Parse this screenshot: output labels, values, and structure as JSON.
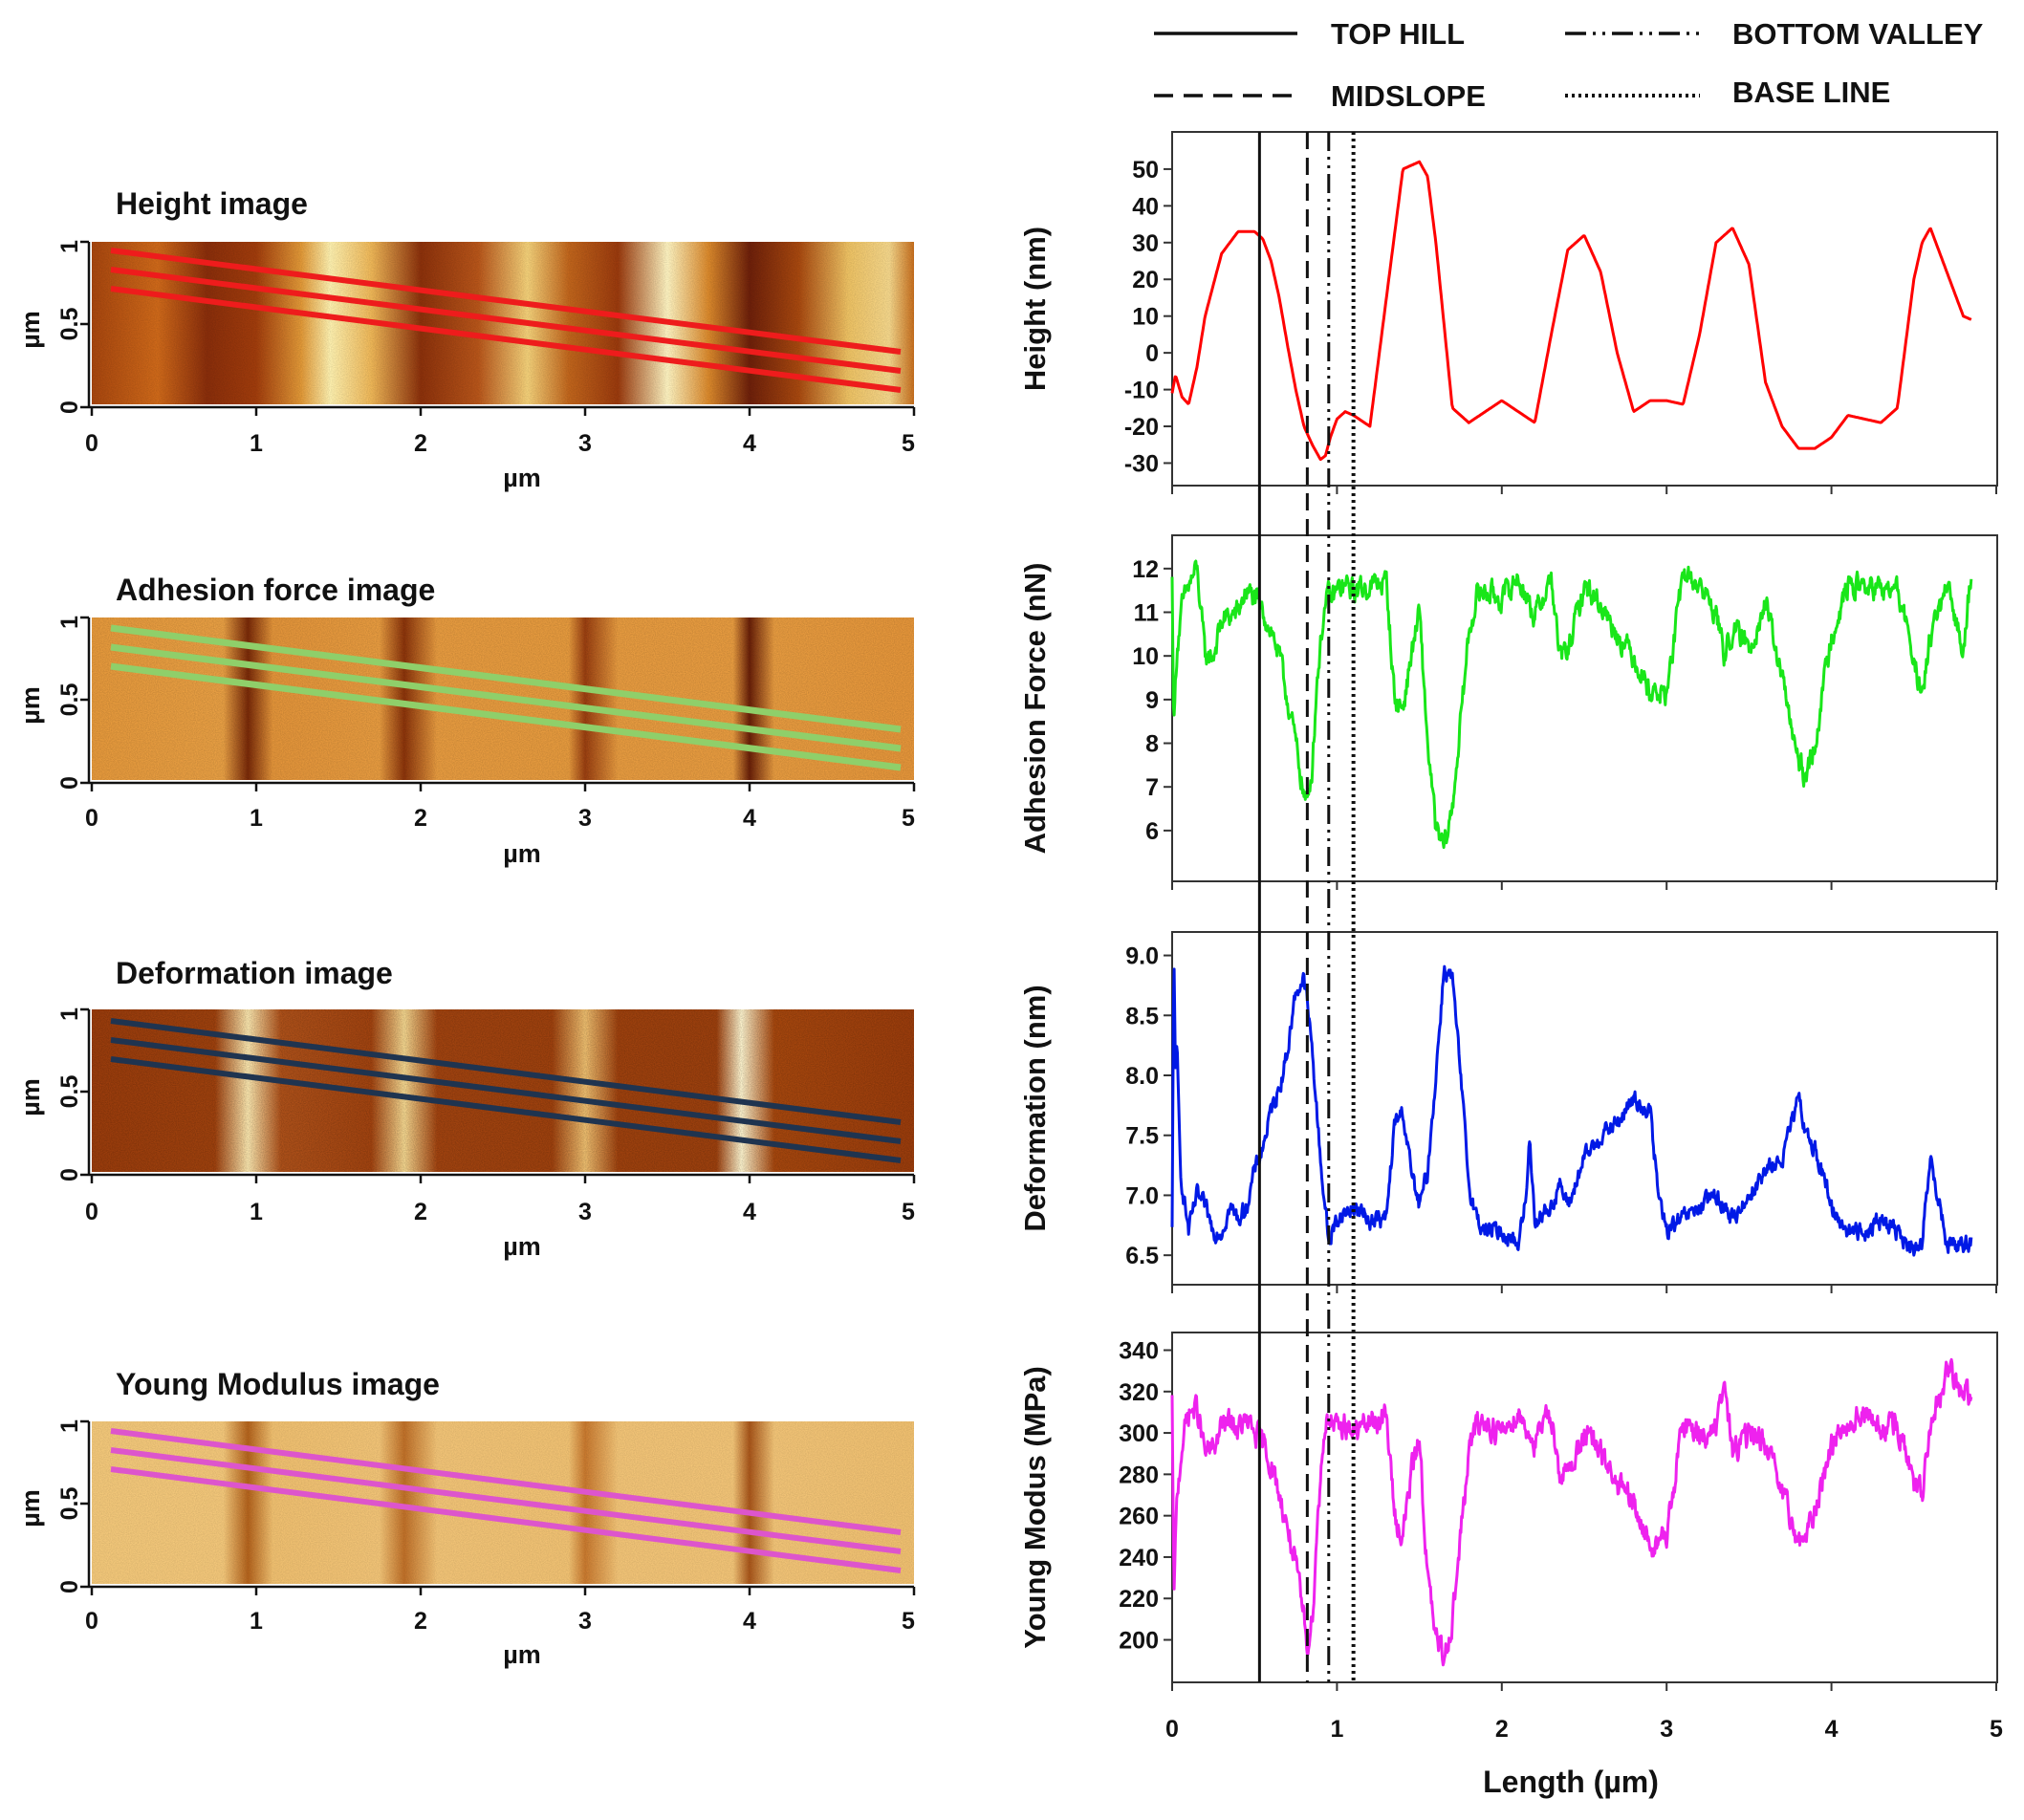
{
  "legend": {
    "top_hill": "TOP HILL",
    "bottom_valley": "BOTTOM VALLEY",
    "midslope": "MIDSLOPE",
    "base_line": "BASE LINE"
  },
  "afm_images": [
    {
      "title": "Height image",
      "x_unit": "µm",
      "y_unit": "µm",
      "line_color": "#ee1c1c",
      "colormap": "height"
    },
    {
      "title": "Adhesion force image",
      "x_unit": "µm",
      "y_unit": "µm",
      "line_color": "#8fcf6a",
      "colormap": "adhesion"
    },
    {
      "title": "Deformation image",
      "x_unit": "µm",
      "y_unit": "µm",
      "line_color": "#1f3450",
      "colormap": "deformation"
    },
    {
      "title": "Young Modulus image",
      "x_unit": "µm",
      "y_unit": "µm",
      "line_color": "#dd55cc",
      "colormap": "modulus"
    }
  ],
  "image_axis": {
    "x_ticks": [
      "0",
      "1",
      "2",
      "3",
      "4",
      "5"
    ],
    "y_ticks": [
      "0",
      "0.5",
      "1"
    ]
  },
  "chart_data": {
    "type": "line",
    "xlabel": "Length (µm)",
    "xlim": [
      0,
      5
    ],
    "x_ticks": [
      "0",
      "1",
      "2",
      "3",
      "4",
      "5"
    ],
    "markers": [
      {
        "name": "TOP HILL",
        "x": 0.53,
        "style": "solid"
      },
      {
        "name": "MIDSLOPE",
        "x": 0.82,
        "style": "dashed"
      },
      {
        "name": "BOTTOM VALLEY",
        "x": 0.95,
        "style": "dashdot"
      },
      {
        "name": "BASE LINE",
        "x": 1.1,
        "style": "dotted"
      }
    ],
    "panels": [
      {
        "ylabel": "Height (nm)",
        "color": "#ff0000",
        "ylim": [
          -33,
          57
        ],
        "noise": 0,
        "y_ticks": [
          "-30",
          "-20",
          "-10",
          "0",
          "10",
          "20",
          "30",
          "40",
          "50"
        ],
        "x": [
          0.0,
          0.02,
          0.06,
          0.1,
          0.15,
          0.2,
          0.3,
          0.4,
          0.5,
          0.55,
          0.6,
          0.65,
          0.7,
          0.75,
          0.8,
          0.85,
          0.9,
          0.93,
          0.96,
          1.0,
          1.05,
          1.1,
          1.2,
          1.3,
          1.4,
          1.5,
          1.55,
          1.6,
          1.7,
          1.8,
          1.9,
          2.0,
          2.1,
          2.2,
          2.3,
          2.4,
          2.5,
          2.6,
          2.7,
          2.8,
          2.9,
          3.0,
          3.1,
          3.2,
          3.3,
          3.4,
          3.5,
          3.6,
          3.7,
          3.8,
          3.9,
          4.0,
          4.05,
          4.1,
          4.2,
          4.3,
          4.4,
          4.5,
          4.55,
          4.6,
          4.7,
          4.8,
          4.85
        ],
        "y": [
          -11,
          -6,
          -12,
          -14,
          -4,
          10,
          27,
          33,
          33,
          31,
          25,
          15,
          2,
          -10,
          -20,
          -25,
          -29,
          -28,
          -23,
          -18,
          -16,
          -17,
          -20,
          15,
          50,
          52,
          48,
          30,
          -15,
          -19,
          -16,
          -13,
          -16,
          -19,
          5,
          28,
          32,
          22,
          0,
          -16,
          -13,
          -13,
          -14,
          5,
          30,
          34,
          24,
          -8,
          -20,
          -26,
          -26,
          -23,
          -20,
          -17,
          -18,
          -19,
          -15,
          20,
          30,
          34,
          22,
          10,
          9
        ]
      },
      {
        "ylabel": "Adhesion Force (nN)",
        "color": "#19e619",
        "ylim": [
          5.1,
          12.5
        ],
        "noise": 0.22,
        "y_ticks": [
          "6",
          "7",
          "8",
          "9",
          "10",
          "11",
          "12"
        ],
        "x": [
          0.0,
          0.01,
          0.03,
          0.06,
          0.1,
          0.15,
          0.2,
          0.25,
          0.3,
          0.35,
          0.4,
          0.45,
          0.5,
          0.55,
          0.6,
          0.65,
          0.7,
          0.75,
          0.8,
          0.82,
          0.85,
          0.88,
          0.92,
          0.95,
          0.97,
          1.0,
          1.05,
          1.1,
          1.2,
          1.3,
          1.35,
          1.4,
          1.45,
          1.5,
          1.55,
          1.6,
          1.65,
          1.7,
          1.75,
          1.8,
          1.85,
          1.9,
          2.0,
          2.1,
          2.2,
          2.3,
          2.35,
          2.4,
          2.5,
          2.6,
          2.7,
          2.8,
          2.9,
          3.0,
          3.1,
          3.2,
          3.3,
          3.35,
          3.4,
          3.5,
          3.6,
          3.7,
          3.8,
          3.85,
          3.9,
          4.0,
          4.1,
          4.2,
          4.3,
          4.4,
          4.5,
          4.55,
          4.6,
          4.7,
          4.8,
          4.85
        ],
        "y": [
          11.7,
          8.4,
          10.2,
          11.1,
          11.6,
          12.0,
          10.0,
          10.0,
          10.8,
          10.9,
          11.0,
          11.5,
          11.3,
          11.0,
          10.6,
          10.0,
          9.0,
          8.0,
          6.8,
          6.6,
          7.5,
          9.5,
          11.0,
          11.4,
          11.3,
          11.5,
          11.6,
          11.5,
          11.6,
          11.7,
          9.0,
          8.8,
          10.0,
          11.0,
          8.0,
          6.0,
          5.6,
          6.5,
          8.5,
          10.5,
          11.4,
          11.5,
          11.3,
          11.8,
          10.9,
          11.8,
          10.0,
          10.1,
          11.6,
          11.2,
          10.5,
          10.0,
          9.2,
          9.1,
          11.9,
          11.6,
          11.0,
          10.0,
          10.6,
          10.2,
          11.2,
          9.5,
          7.5,
          7.2,
          8.0,
          10.5,
          11.6,
          11.6,
          11.5,
          11.5,
          10.0,
          8.9,
          10.5,
          11.5,
          10.2,
          12.0
        ]
      },
      {
        "ylabel": "Deformation (nm)",
        "color": "#0019e6",
        "ylim": [
          6.35,
          9.1
        ],
        "noise": 0.06,
        "y_ticks": [
          "6.5",
          "7.0",
          "7.5",
          "8.0",
          "8.5",
          "9.0"
        ],
        "x": [
          0.0,
          0.01,
          0.02,
          0.03,
          0.05,
          0.08,
          0.1,
          0.15,
          0.2,
          0.25,
          0.3,
          0.35,
          0.4,
          0.45,
          0.5,
          0.55,
          0.6,
          0.65,
          0.7,
          0.75,
          0.8,
          0.82,
          0.85,
          0.9,
          0.95,
          1.0,
          1.1,
          1.2,
          1.3,
          1.35,
          1.4,
          1.45,
          1.5,
          1.55,
          1.6,
          1.65,
          1.7,
          1.75,
          1.8,
          1.85,
          1.9,
          2.0,
          2.1,
          2.15,
          2.17,
          2.2,
          2.3,
          2.35,
          2.4,
          2.45,
          2.5,
          2.6,
          2.7,
          2.8,
          2.9,
          2.95,
          3.0,
          3.1,
          3.2,
          3.3,
          3.4,
          3.5,
          3.6,
          3.7,
          3.8,
          3.85,
          3.9,
          4.0,
          4.1,
          4.2,
          4.3,
          4.4,
          4.5,
          4.55,
          4.6,
          4.7,
          4.8,
          4.85
        ],
        "y": [
          6.7,
          9.05,
          8.1,
          8.2,
          7.2,
          6.9,
          6.7,
          7.0,
          6.9,
          6.7,
          6.7,
          6.9,
          6.8,
          6.9,
          7.2,
          7.4,
          7.7,
          7.9,
          8.2,
          8.7,
          8.8,
          8.6,
          8.2,
          7.3,
          6.6,
          6.8,
          6.9,
          6.8,
          6.8,
          7.6,
          7.7,
          7.2,
          6.9,
          7.2,
          8.0,
          8.9,
          8.8,
          8.0,
          7.1,
          6.8,
          6.7,
          6.7,
          6.6,
          7.0,
          7.5,
          6.8,
          6.9,
          7.1,
          6.9,
          7.1,
          7.3,
          7.5,
          7.6,
          7.8,
          7.7,
          7.0,
          6.7,
          6.8,
          6.9,
          7.0,
          6.8,
          7.0,
          7.2,
          7.3,
          7.8,
          7.5,
          7.4,
          6.9,
          6.7,
          6.7,
          6.8,
          6.7,
          6.5,
          6.6,
          7.3,
          6.6,
          6.6,
          6.6
        ]
      },
      {
        "ylabel": "Young Modus (MPa)",
        "color": "#ee22ee",
        "ylim": [
          185,
          343
        ],
        "noise": 5,
        "y_ticks": [
          "200",
          "220",
          "240",
          "260",
          "280",
          "300",
          "320",
          "340"
        ],
        "x": [
          0.0,
          0.01,
          0.03,
          0.06,
          0.1,
          0.15,
          0.2,
          0.25,
          0.3,
          0.35,
          0.4,
          0.45,
          0.5,
          0.55,
          0.6,
          0.65,
          0.7,
          0.75,
          0.8,
          0.82,
          0.85,
          0.88,
          0.92,
          0.95,
          0.97,
          1.0,
          1.05,
          1.1,
          1.2,
          1.3,
          1.35,
          1.4,
          1.45,
          1.5,
          1.55,
          1.6,
          1.65,
          1.7,
          1.75,
          1.8,
          1.85,
          1.9,
          2.0,
          2.1,
          2.2,
          2.3,
          2.35,
          2.4,
          2.5,
          2.6,
          2.7,
          2.8,
          2.9,
          3.0,
          3.1,
          3.2,
          3.3,
          3.35,
          3.4,
          3.5,
          3.6,
          3.7,
          3.8,
          3.85,
          3.9,
          4.0,
          4.1,
          4.2,
          4.3,
          4.4,
          4.5,
          4.55,
          4.6,
          4.7,
          4.8,
          4.85
        ],
        "y": [
          315,
          220,
          268,
          295,
          310,
          312,
          290,
          292,
          303,
          305,
          302,
          305,
          300,
          295,
          285,
          270,
          255,
          235,
          210,
          198,
          210,
          255,
          300,
          310,
          305,
          300,
          305,
          300,
          305,
          308,
          260,
          250,
          280,
          298,
          230,
          200,
          192,
          210,
          250,
          290,
          305,
          305,
          300,
          310,
          295,
          310,
          280,
          280,
          300,
          290,
          275,
          265,
          245,
          250,
          305,
          300,
          300,
          325,
          290,
          300,
          295,
          270,
          248,
          250,
          262,
          295,
          305,
          310,
          300,
          305,
          275,
          270,
          300,
          330,
          320,
          318
        ]
      }
    ]
  }
}
